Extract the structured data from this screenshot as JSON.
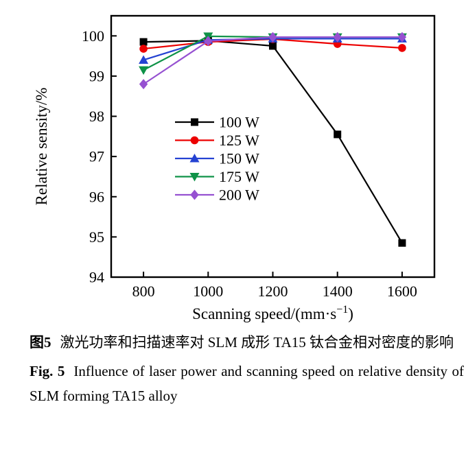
{
  "chart_data": {
    "type": "line",
    "title": "",
    "xlabel": "Scanning speed/(mm·s⁻¹)",
    "xlabel_parts": {
      "base": "Scanning speed/(mm·s",
      "sup": "−1",
      "close": ")"
    },
    "ylabel": "Relative sensity/%",
    "x": [
      800,
      1000,
      1200,
      1400,
      1600
    ],
    "xticks": [
      "800",
      "1000",
      "1200",
      "1400",
      "1600"
    ],
    "yticks": [
      "94",
      "95",
      "96",
      "97",
      "98",
      "99",
      "100"
    ],
    "xlim": [
      700,
      1700
    ],
    "ylim": [
      94,
      100.5
    ],
    "grid": false,
    "legend_position": "inside-left-middle",
    "axis_color": "#000000",
    "series": [
      {
        "name": "100 W",
        "color": "#000000",
        "marker": "square",
        "values": [
          99.85,
          99.88,
          99.75,
          97.55,
          94.85
        ]
      },
      {
        "name": "125 W",
        "color": "#ec0000",
        "marker": "circle",
        "values": [
          99.68,
          99.85,
          99.92,
          99.8,
          99.7
        ]
      },
      {
        "name": "150 W",
        "color": "#2442d2",
        "marker": "triangle-up",
        "values": [
          99.4,
          99.9,
          99.93,
          99.93,
          99.93
        ]
      },
      {
        "name": "175 W",
        "color": "#0e9247",
        "marker": "triangle-down",
        "values": [
          99.15,
          99.99,
          99.97,
          99.97,
          99.97
        ]
      },
      {
        "name": "200 W",
        "color": "#9651d1",
        "marker": "diamond",
        "values": [
          98.8,
          99.87,
          99.97,
          99.97,
          99.97
        ]
      }
    ]
  },
  "caption": {
    "zh_prefix": "图5",
    "zh_text": "激光功率和扫描速率对 SLM 成形 TA15 钛合金相对密度的影响",
    "en_prefix": "Fig. 5",
    "en_text": "Influence of laser power and scanning speed on relative density of SLM forming TA15 alloy"
  }
}
